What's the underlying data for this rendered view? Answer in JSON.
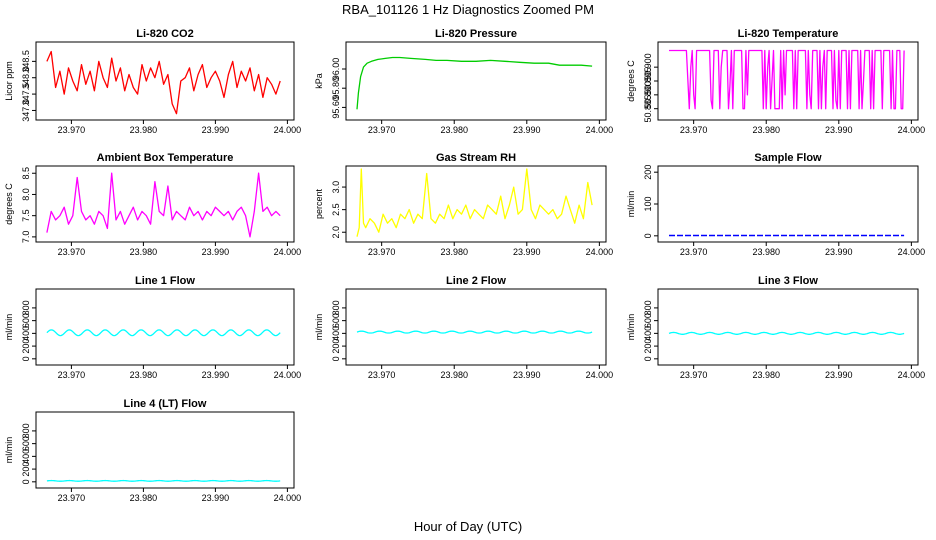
{
  "figure": {
    "title": "RBA_101126  1 Hz Diagnostics Zoomed PM",
    "xlabel": "Hour of Day (UTC)"
  },
  "chart_data": [
    {
      "type": "line",
      "title": "Li-820 CO2",
      "ylabel": "Licor ppm",
      "color": "#ff0000",
      "xlim": [
        23.9655,
        24.0005
      ],
      "ylim": [
        346.8,
        349.0
      ],
      "xticks": [
        "23.970",
        "23.980",
        "23.990",
        "24.000"
      ],
      "xtick_values": [
        23.97,
        23.98,
        23.99,
        24.0
      ],
      "yticks": [
        "347.0",
        "347.5",
        "348.0",
        "348.5"
      ],
      "ytick_values": [
        347.0,
        347.5,
        348.0,
        348.5
      ],
      "series": [
        {
          "x": [
            23.9666,
            23.9672,
            23.9678,
            23.9684,
            23.969,
            23.9696,
            23.9702,
            23.9708,
            23.9714,
            23.972,
            23.9726,
            23.9732,
            23.9738,
            23.9744,
            23.975,
            23.9756,
            23.9762,
            23.9768,
            23.9774,
            23.978,
            23.9786,
            23.9792,
            23.9798,
            23.9804,
            23.981,
            23.9816,
            23.9822,
            23.9828,
            23.9834,
            23.984,
            23.9846,
            23.9852,
            23.9858,
            23.9864,
            23.987,
            23.9876,
            23.9882,
            23.9888,
            23.9894,
            23.99,
            23.9906,
            23.9912,
            23.9918,
            23.9924,
            23.993,
            23.9936,
            23.9942,
            23.9948,
            23.9954,
            23.996,
            23.9966,
            23.9972,
            23.9978,
            23.9984,
            23.999
          ],
          "y": [
            348.5,
            348.8,
            347.7,
            348.2,
            347.5,
            348.3,
            347.9,
            347.6,
            348.4,
            347.8,
            348.2,
            347.6,
            348.5,
            348.0,
            347.7,
            348.6,
            347.9,
            348.3,
            347.6,
            348.1,
            347.7,
            347.5,
            348.4,
            347.9,
            348.3,
            348.0,
            348.5,
            347.8,
            348.1,
            347.2,
            346.9,
            347.9,
            348.0,
            348.3,
            347.6,
            348.1,
            348.4,
            347.7,
            348.0,
            348.2,
            347.9,
            347.4,
            348.1,
            348.5,
            347.7,
            348.2,
            347.9,
            348.3,
            347.6,
            348.1,
            347.4,
            348.0,
            347.8,
            347.5,
            347.9
          ]
        }
      ]
    },
    {
      "type": "line",
      "title": "Li-820 Pressure",
      "ylabel": "kPa",
      "color": "#00cc00",
      "xlim": [
        23.9655,
        24.0005
      ],
      "ylim": [
        95.5,
        96.25
      ],
      "xticks": [
        "23.970",
        "23.980",
        "23.990",
        "24.000"
      ],
      "xtick_values": [
        23.97,
        23.98,
        23.99,
        24.0
      ],
      "yticks": [
        "95.60",
        "95.80",
        "96.00"
      ],
      "ytick_values": [
        95.6,
        95.8,
        96.0
      ],
      "series": [
        {
          "x": [
            23.9666,
            23.9668,
            23.9671,
            23.9675,
            23.968,
            23.9686,
            23.9695,
            23.9705,
            23.9715,
            23.9725,
            23.974,
            23.976,
            23.9775,
            23.979,
            23.981,
            23.983,
            23.985,
            23.987,
            23.989,
            23.991,
            23.993,
            23.9945,
            23.996,
            23.9975,
            23.999
          ],
          "y": [
            95.58,
            95.75,
            95.92,
            96.02,
            96.06,
            96.08,
            96.1,
            96.11,
            96.12,
            96.12,
            96.11,
            96.1,
            96.09,
            96.09,
            96.08,
            96.08,
            96.09,
            96.08,
            96.07,
            96.06,
            96.06,
            96.04,
            96.04,
            96.04,
            96.03
          ]
        }
      ]
    },
    {
      "type": "line",
      "title": "Li-820 Temperature",
      "ylabel": "degrees C",
      "color": "#ff00ff",
      "xlim": [
        23.9655,
        24.0005
      ],
      "ylim": [
        50.882,
        50.908
      ],
      "xticks": [
        "23.970",
        "23.980",
        "23.990",
        "24.000"
      ],
      "xtick_values": [
        23.97,
        23.98,
        23.99,
        24.0
      ],
      "yticks": [
        "50.885",
        "50.890",
        "50.895",
        "50.900"
      ],
      "ytick_values": [
        50.885,
        50.89,
        50.895,
        50.9
      ],
      "series": [
        {
          "x": [
            23.9666,
            23.969,
            23.9692,
            23.9694,
            23.9696,
            23.9698,
            23.97,
            23.9702,
            23.9704,
            23.9722,
            23.9724,
            23.9726,
            23.9728,
            23.9734,
            23.9736,
            23.9738,
            23.974,
            23.9746,
            23.9748,
            23.975,
            23.9752,
            23.9754,
            23.9756,
            23.9766,
            23.9768,
            23.977,
            23.9772,
            23.9774,
            23.9776,
            23.9794,
            23.9796,
            23.9798,
            23.98,
            23.9802,
            23.9804,
            23.9806,
            23.9808,
            23.981,
            23.9812,
            23.9818,
            23.982,
            23.9822,
            23.9824,
            23.9826,
            23.9828,
            23.9836,
            23.9838,
            23.984,
            23.9842,
            23.9844,
            23.9846,
            23.9854,
            23.9856,
            23.9858,
            23.986,
            23.9862,
            23.9864,
            23.987,
            23.9872,
            23.9874,
            23.9876,
            23.9878,
            23.988,
            23.9882,
            23.9884,
            23.989,
            23.9892,
            23.9894,
            23.9896,
            23.9898,
            23.99,
            23.9902,
            23.9904,
            23.991,
            23.9912,
            23.9914,
            23.9916,
            23.9918,
            23.992,
            23.9926,
            23.9928,
            23.993,
            23.9932,
            23.9934,
            23.9936,
            23.9942,
            23.9944,
            23.9946,
            23.9948,
            23.995,
            23.9952,
            23.9958,
            23.996,
            23.9962,
            23.9964,
            23.997,
            23.9972,
            23.9974,
            23.9976,
            23.9978,
            23.998,
            23.9984,
            23.9986,
            23.9988,
            23.999
          ],
          "y": [
            50.906,
            50.906,
            50.895,
            50.885,
            50.9,
            50.906,
            50.89,
            50.885,
            50.906,
            50.906,
            50.888,
            50.885,
            50.906,
            50.906,
            50.885,
            50.9,
            50.906,
            50.906,
            50.885,
            50.893,
            50.906,
            50.885,
            50.906,
            50.906,
            50.885,
            50.885,
            50.906,
            50.89,
            50.906,
            50.906,
            50.885,
            50.906,
            50.885,
            50.9,
            50.906,
            50.885,
            50.895,
            50.906,
            50.885,
            50.885,
            50.906,
            50.885,
            50.906,
            50.89,
            50.906,
            50.906,
            50.885,
            50.906,
            50.885,
            50.906,
            50.906,
            50.906,
            50.885,
            50.906,
            50.89,
            50.885,
            50.906,
            50.906,
            50.885,
            50.906,
            50.885,
            50.9,
            50.906,
            50.885,
            50.906,
            50.906,
            50.885,
            50.906,
            50.888,
            50.885,
            50.906,
            50.885,
            50.906,
            50.906,
            50.885,
            50.906,
            50.885,
            50.906,
            50.906,
            50.906,
            50.885,
            50.906,
            50.885,
            50.895,
            50.906,
            50.906,
            50.885,
            50.906,
            50.885,
            50.906,
            50.906,
            50.906,
            50.885,
            50.906,
            50.906,
            50.906,
            50.885,
            50.906,
            50.885,
            50.885,
            50.906,
            50.906,
            50.885,
            50.885,
            50.906
          ]
        }
      ]
    },
    {
      "type": "line",
      "title": "Ambient Box Temperature",
      "ylabel": "degrees C",
      "color": "#ff00ff",
      "xlim": [
        23.9655,
        24.0005
      ],
      "ylim": [
        6.95,
        8.6
      ],
      "xticks": [
        "23.970",
        "23.980",
        "23.990",
        "24.000"
      ],
      "xtick_values": [
        23.97,
        23.98,
        23.99,
        24.0
      ],
      "yticks": [
        "7.0",
        "7.5",
        "8.0",
        "8.5"
      ],
      "ytick_values": [
        7.0,
        7.5,
        8.0,
        8.5
      ],
      "series": [
        {
          "x": [
            23.9666,
            23.9672,
            23.9678,
            23.9684,
            23.969,
            23.9696,
            23.9702,
            23.9708,
            23.9714,
            23.972,
            23.9726,
            23.9732,
            23.9738,
            23.9744,
            23.975,
            23.9756,
            23.9762,
            23.9768,
            23.9774,
            23.978,
            23.9786,
            23.9792,
            23.9798,
            23.9804,
            23.981,
            23.9816,
            23.9822,
            23.9828,
            23.9834,
            23.984,
            23.9846,
            23.9852,
            23.9858,
            23.9864,
            23.987,
            23.9876,
            23.9882,
            23.9888,
            23.9894,
            23.99,
            23.9906,
            23.9912,
            23.9918,
            23.9924,
            23.993,
            23.9936,
            23.9942,
            23.9948,
            23.9954,
            23.996,
            23.9966,
            23.9972,
            23.9978,
            23.9984,
            23.999
          ],
          "y": [
            7.1,
            7.6,
            7.4,
            7.5,
            7.7,
            7.3,
            7.5,
            8.4,
            7.6,
            7.4,
            7.5,
            7.3,
            7.6,
            7.5,
            7.2,
            8.5,
            7.4,
            7.6,
            7.3,
            7.5,
            7.7,
            7.4,
            7.6,
            7.5,
            7.3,
            8.3,
            7.6,
            7.5,
            8.2,
            7.4,
            7.6,
            7.5,
            7.4,
            7.7,
            7.5,
            7.6,
            7.4,
            7.6,
            7.5,
            7.7,
            7.6,
            7.5,
            7.6,
            7.4,
            7.6,
            7.7,
            7.5,
            7.0,
            7.6,
            8.5,
            7.6,
            7.7,
            7.5,
            7.6,
            7.5
          ]
        }
      ]
    },
    {
      "type": "line",
      "title": "Gas Stream RH",
      "ylabel": "percent",
      "color": "#ffff00",
      "xlim": [
        23.9655,
        24.0005
      ],
      "ylim": [
        1.85,
        3.4
      ],
      "xticks": [
        "23.970",
        "23.980",
        "23.990",
        "24.000"
      ],
      "xtick_values": [
        23.97,
        23.98,
        23.99,
        24.0
      ],
      "yticks": [
        "2.0",
        "2.5",
        "3.0"
      ],
      "ytick_values": [
        2.0,
        2.5,
        3.0
      ],
      "series": [
        {
          "x": [
            23.9666,
            23.9669,
            23.9672,
            23.9675,
            23.9678,
            23.9684,
            23.969,
            23.9696,
            23.9702,
            23.9708,
            23.9714,
            23.972,
            23.9726,
            23.9732,
            23.9738,
            23.9744,
            23.975,
            23.9756,
            23.9762,
            23.9768,
            23.9774,
            23.978,
            23.9786,
            23.9792,
            23.9798,
            23.9804,
            23.981,
            23.9816,
            23.9822,
            23.9828,
            23.9834,
            23.984,
            23.9846,
            23.9852,
            23.9858,
            23.9864,
            23.987,
            23.9876,
            23.9882,
            23.9888,
            23.9894,
            23.99,
            23.9906,
            23.9912,
            23.9918,
            23.9924,
            23.993,
            23.9936,
            23.9942,
            23.9948,
            23.9954,
            23.996,
            23.9966,
            23.9972,
            23.9978,
            23.9984,
            23.999
          ],
          "y": [
            1.9,
            2.1,
            3.4,
            2.2,
            2.1,
            2.3,
            2.2,
            2.0,
            2.4,
            2.2,
            2.3,
            2.1,
            2.4,
            2.3,
            2.5,
            2.2,
            2.4,
            2.3,
            3.3,
            2.3,
            2.2,
            2.4,
            2.3,
            2.6,
            2.3,
            2.5,
            2.4,
            2.6,
            2.3,
            2.5,
            2.4,
            2.3,
            2.6,
            2.5,
            2.4,
            2.8,
            2.3,
            2.6,
            3.0,
            2.4,
            2.5,
            3.4,
            2.5,
            2.3,
            2.6,
            2.5,
            2.4,
            2.5,
            2.3,
            2.4,
            2.8,
            2.5,
            2.2,
            2.6,
            2.3,
            3.1,
            2.6
          ]
        }
      ]
    },
    {
      "type": "line",
      "title": "Sample Flow",
      "ylabel": "ml/min",
      "color": "#0000ff",
      "xlim": [
        23.9655,
        24.0005
      ],
      "ylim": [
        -10,
        210
      ],
      "xticks": [
        "23.970",
        "23.980",
        "23.990",
        "24.000"
      ],
      "xtick_values": [
        23.97,
        23.98,
        23.99,
        24.0
      ],
      "yticks": [
        "0",
        "100",
        "200"
      ],
      "ytick_values": [
        0,
        100,
        200
      ],
      "series": [
        {
          "x": [
            23.9666,
            23.999
          ],
          "y": [
            1,
            1
          ]
        }
      ]
    },
    {
      "type": "line",
      "title": "Line 1 Flow",
      "ylabel": "ml/min",
      "color": "#00ffff",
      "xlim": [
        23.9655,
        24.0005
      ],
      "ylim": [
        -50,
        1050
      ],
      "xticks": [
        "23.970",
        "23.980",
        "23.990",
        "24.000"
      ],
      "xtick_values": [
        23.97,
        23.98,
        23.99,
        24.0
      ],
      "yticks": [
        "0",
        "200",
        "400",
        "600",
        "800"
      ],
      "ytick_values": [
        0,
        200,
        400,
        600,
        800
      ],
      "series": [
        {
          "x": [
            23.9666,
            23.999
          ],
          "y": [
            410,
            410
          ],
          "wave_amplitude": 45,
          "wave_count": 13
        }
      ]
    },
    {
      "type": "line",
      "title": "Line 2 Flow",
      "ylabel": "ml/min",
      "color": "#00ffff",
      "xlim": [
        23.9655,
        24.0005
      ],
      "ylim": [
        -50,
        1050
      ],
      "xticks": [
        "23.970",
        "23.980",
        "23.990",
        "24.000"
      ],
      "xtick_values": [
        23.97,
        23.98,
        23.99,
        24.0
      ],
      "yticks": [
        "0",
        "200",
        "400",
        "600",
        "800"
      ],
      "ytick_values": [
        0,
        200,
        400,
        600,
        800
      ],
      "series": [
        {
          "x": [
            23.9666,
            23.999
          ],
          "y": [
            420,
            420
          ],
          "wave_amplitude": 15,
          "wave_count": 13
        }
      ]
    },
    {
      "type": "line",
      "title": "Line 3 Flow",
      "ylabel": "ml/min",
      "color": "#00ffff",
      "xlim": [
        23.9655,
        24.0005
      ],
      "ylim": [
        -50,
        1050
      ],
      "xticks": [
        "23.970",
        "23.980",
        "23.990",
        "24.000"
      ],
      "xtick_values": [
        23.97,
        23.98,
        23.99,
        24.0
      ],
      "yticks": [
        "0",
        "200",
        "400",
        "600",
        "800"
      ],
      "ytick_values": [
        0,
        200,
        400,
        600,
        800
      ],
      "series": [
        {
          "x": [
            23.9666,
            23.999
          ],
          "y": [
            400,
            400
          ],
          "wave_amplitude": 15,
          "wave_count": 13
        }
      ]
    },
    {
      "type": "line",
      "title": "Line 4 (LT) Flow",
      "ylabel": "ml/min",
      "color": "#00ffff",
      "xlim": [
        23.9655,
        24.0005
      ],
      "ylim": [
        -50,
        1050
      ],
      "xticks": [
        "23.970",
        "23.980",
        "23.990",
        "24.000"
      ],
      "xtick_values": [
        23.97,
        23.98,
        23.99,
        24.0
      ],
      "yticks": [
        "0",
        "200",
        "400",
        "600",
        "800"
      ],
      "ytick_values": [
        0,
        200,
        400,
        600,
        800
      ],
      "series": [
        {
          "x": [
            23.9666,
            23.999
          ],
          "y": [
            15,
            15
          ],
          "wave_amplitude": 5,
          "wave_count": 13
        }
      ]
    }
  ]
}
